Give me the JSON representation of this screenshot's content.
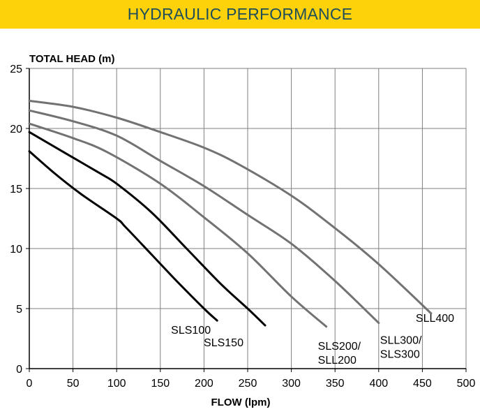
{
  "header": {
    "title": "HYDRAULIC PERFORMANCE"
  },
  "colors": {
    "banner": "#fdd20a",
    "title": "#1f4e5a",
    "grid": "#7f7f7f",
    "dark_curve": "#000000",
    "light_curve": "#727272"
  },
  "chart_data": {
    "type": "line",
    "title": "",
    "xlabel": "FLOW (lpm)",
    "ylabel": "TOTAL HEAD (m)",
    "xlim": [
      0,
      500
    ],
    "ylim": [
      0,
      25
    ],
    "xticks": [
      0,
      50,
      100,
      150,
      200,
      250,
      300,
      350,
      400,
      450,
      500
    ],
    "yticks": [
      0,
      5,
      10,
      15,
      20,
      25
    ],
    "grid": true,
    "series": [
      {
        "name": "SLS100",
        "color": "#000000",
        "x": [
          0,
          30,
          60,
          100,
          110,
          140,
          170,
          200,
          215
        ],
        "y": [
          18.1,
          16.2,
          14.5,
          12.5,
          11.8,
          9.5,
          7.2,
          5.0,
          4.0
        ]
      },
      {
        "name": "SLS150",
        "color": "#000000",
        "x": [
          0,
          40,
          80,
          100,
          140,
          180,
          220,
          250,
          270
        ],
        "y": [
          19.7,
          18.0,
          16.3,
          15.4,
          13.0,
          10.0,
          7.0,
          5.0,
          3.6
        ]
      },
      {
        "name": "SLS200/ SLL200",
        "color": "#727272",
        "x": [
          0,
          50,
          90,
          150,
          200,
          250,
          300,
          340
        ],
        "y": [
          20.4,
          19.2,
          18.0,
          15.4,
          12.6,
          9.6,
          6.0,
          3.5
        ]
      },
      {
        "name": "SLL300/ SLS300",
        "color": "#727272",
        "x": [
          0,
          50,
          100,
          150,
          200,
          250,
          300,
          350,
          400
        ],
        "y": [
          21.5,
          20.6,
          19.4,
          17.3,
          15.2,
          12.8,
          10.4,
          7.3,
          3.8
        ]
      },
      {
        "name": "SLL400",
        "color": "#727272",
        "x": [
          0,
          50,
          100,
          150,
          200,
          240,
          300,
          350,
          400,
          460
        ],
        "y": [
          22.3,
          21.8,
          20.9,
          19.7,
          18.4,
          17.0,
          14.4,
          11.7,
          8.7,
          4.6
        ]
      }
    ],
    "annotations": [
      {
        "text": "SLS100",
        "series": 0
      },
      {
        "text": "SLS150",
        "series": 1
      },
      {
        "lines": [
          "SLS200/",
          "SLL200"
        ],
        "series": 2
      },
      {
        "lines": [
          "SLL300/",
          "SLS300"
        ],
        "series": 3
      },
      {
        "text": "SLL400",
        "series": 4
      }
    ]
  }
}
